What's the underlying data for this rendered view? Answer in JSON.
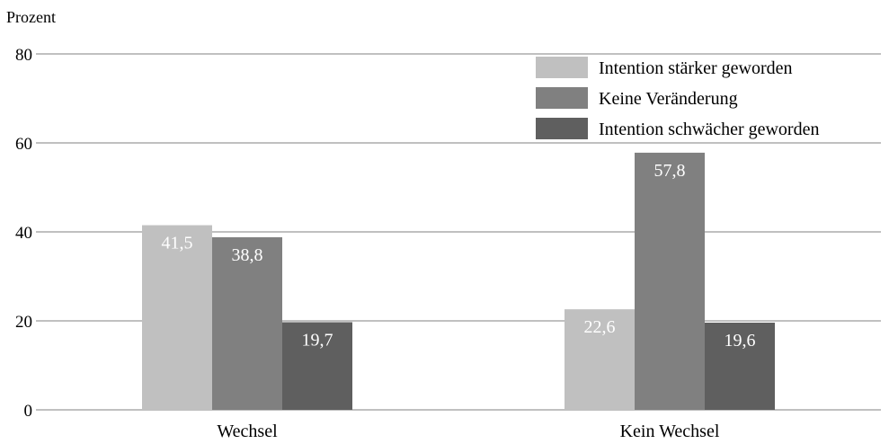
{
  "chart_data": {
    "type": "bar",
    "ylabel": "Prozent",
    "xlabel": "",
    "ylim": [
      0,
      80
    ],
    "yticks": [
      0,
      20,
      40,
      60,
      80
    ],
    "grid": true,
    "legend_position": "top-right",
    "categories": [
      "Wechsel",
      "Kein Wechsel"
    ],
    "series": [
      {
        "name": "Intention stärker geworden",
        "color": "#c0c0c0",
        "values": [
          41.5,
          22.6
        ],
        "labels": [
          "41,5",
          "22,6"
        ]
      },
      {
        "name": "Keine Veränderung",
        "color": "#808080",
        "values": [
          38.8,
          57.8
        ],
        "labels": [
          "38,8",
          "57,8"
        ]
      },
      {
        "name": "Intention schwächer geworden",
        "color": "#5f5f5f",
        "values": [
          19.7,
          19.6
        ],
        "labels": [
          "19,7",
          "19,6"
        ]
      }
    ]
  }
}
